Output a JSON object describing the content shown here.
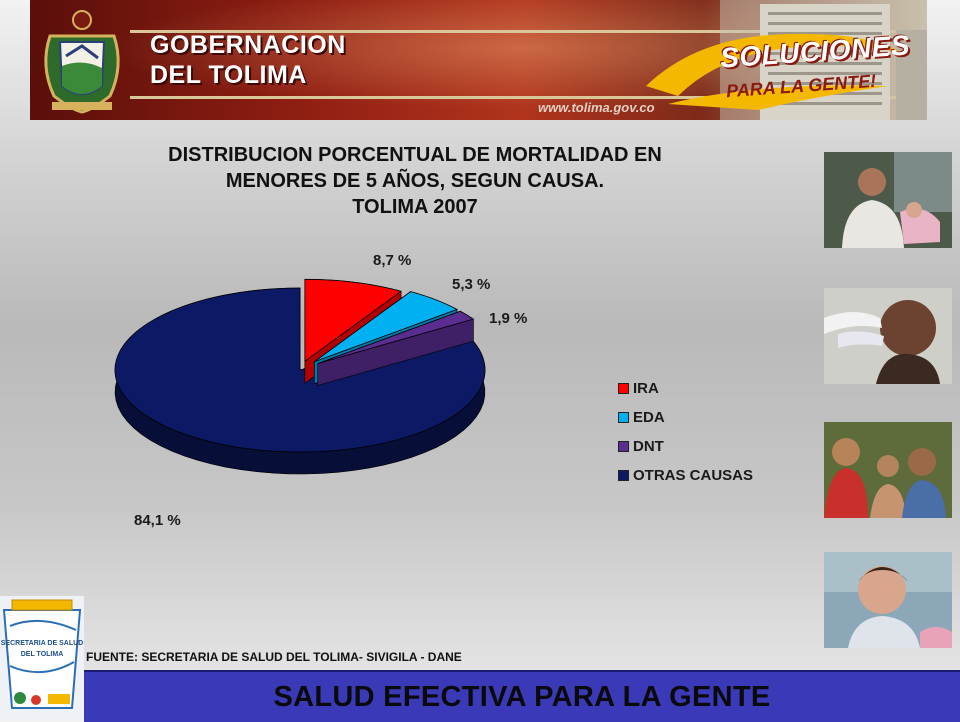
{
  "banner": {
    "title_line1": "GOBERNACION",
    "title_line2": "DEL TOLIMA",
    "url": "www.tolima.gov.co",
    "slogan_line1": "SOLUCIONES",
    "slogan_line2": "PARA LA GENTE!"
  },
  "chart_data": {
    "type": "pie",
    "style": "3d-exploded",
    "title_lines": [
      "DISTRIBUCION PORCENTUAL DE MORTALIDAD EN",
      "MENORES DE 5 AÑOS, SEGUN CAUSA.",
      "TOLIMA 2007"
    ],
    "categories": [
      "IRA",
      "EDA",
      "DNT",
      "OTRAS CAUSAS"
    ],
    "values": [
      8.7,
      5.3,
      1.9,
      84.1
    ],
    "labels": [
      "8,7 %",
      "5,3 %",
      "1,9 %",
      "84,1 %"
    ],
    "colors": [
      "#ff0000",
      "#00b0f0",
      "#5a2d91",
      "#0c1a66"
    ],
    "legend_position": "right"
  },
  "source": "FUENTE: SECRETARIA DE SALUD DEL TOLIMA- SIVIGILA - DANE",
  "logo": {
    "line1": "SECRETARIA DE SALUD",
    "line2": "DEL TOLIMA"
  },
  "footer": {
    "slogan": "SALUD EFECTIVA PARA LA GENTE"
  },
  "colors": {
    "banner_red": "#9a2616",
    "footer_blue": "#3a3ab8"
  }
}
